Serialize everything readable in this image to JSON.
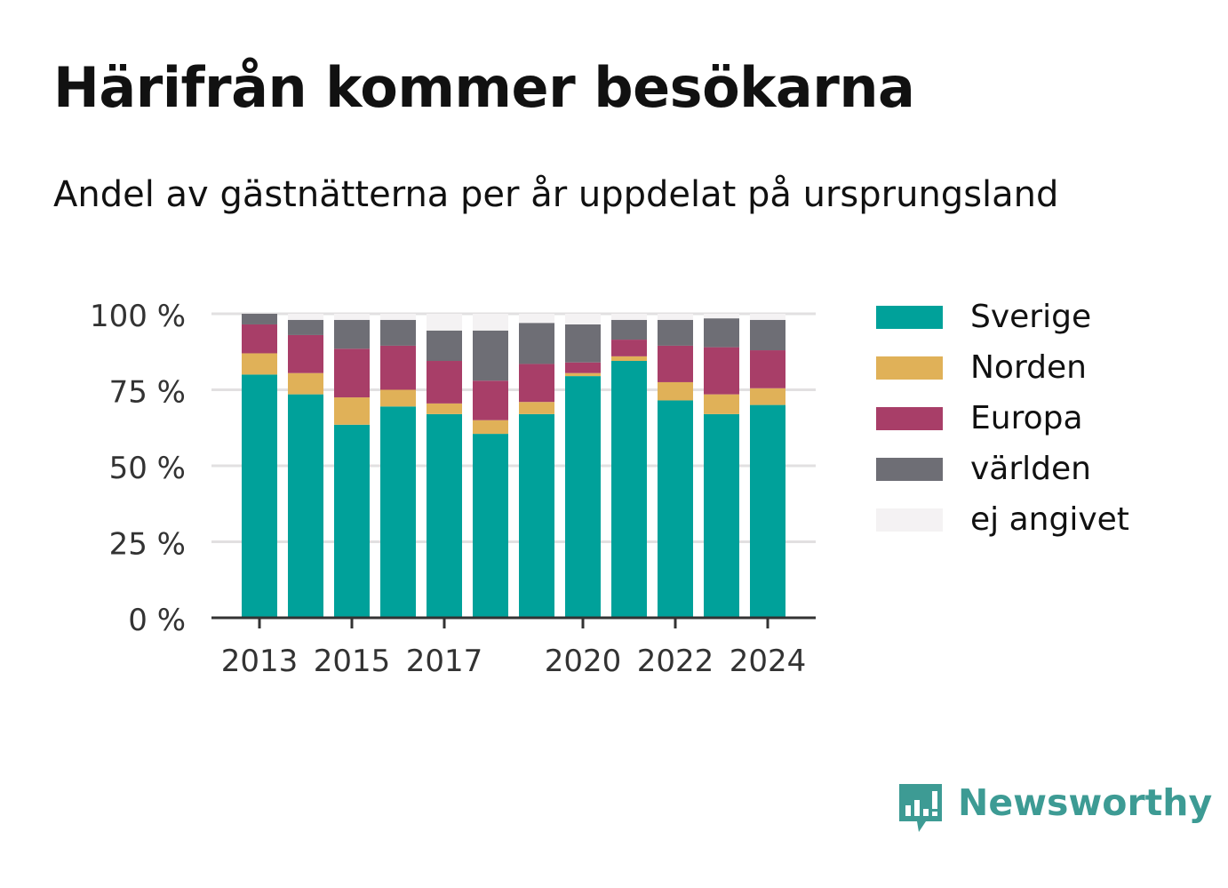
{
  "title": "Härifrån kommer besökarna",
  "subtitle": "Andel av gästnätterna per år uppdelat på ursprungsland",
  "brand": {
    "name": "Newsworthy",
    "icon": "newsworthy-logo-icon",
    "color": "#3d9b94"
  },
  "chart_data": {
    "type": "bar",
    "stacked": true,
    "title": "Härifrån kommer besökarna",
    "subtitle": "Andel av gästnätterna per år uppdelat på ursprungsland",
    "xlabel": "",
    "ylabel": "",
    "categories": [
      "2013",
      "2014",
      "2015",
      "2016",
      "2017",
      "2018",
      "2019",
      "2020",
      "2021",
      "2022",
      "2023",
      "2024"
    ],
    "x_tick_labels": [
      "2013",
      "2015",
      "2017",
      "2020",
      "2022",
      "2024"
    ],
    "y_ticks": [
      0,
      25,
      50,
      75,
      100
    ],
    "y_tick_labels": [
      "0 %",
      "25 %",
      "50 %",
      "75 %",
      "100 %"
    ],
    "ylim": [
      0,
      100
    ],
    "grid": true,
    "legend_position": "right",
    "series": [
      {
        "name": "Sverige",
        "color": "#00a19a",
        "values": [
          80,
          73.5,
          63.5,
          69.5,
          67,
          60.5,
          67,
          79.5,
          84.5,
          71.5,
          67,
          70
        ]
      },
      {
        "name": "Norden",
        "color": "#e0b158",
        "values": [
          7,
          7,
          9,
          5.5,
          3.5,
          4.5,
          4,
          1,
          1.5,
          6,
          6.5,
          5.5
        ]
      },
      {
        "name": "Europa",
        "color": "#a83e68",
        "values": [
          9.5,
          12.5,
          16,
          14.5,
          14,
          13,
          12.5,
          3.5,
          5.5,
          12,
          15.5,
          12.5
        ]
      },
      {
        "name": "världen",
        "color": "#6e6e75",
        "values": [
          3.5,
          5,
          9.5,
          8.5,
          10,
          16.5,
          13.5,
          12.5,
          6.5,
          8.5,
          9.5,
          10
        ]
      },
      {
        "name": "ej angivet",
        "color": "#f4f2f3",
        "values": [
          0,
          2,
          2,
          2,
          5.5,
          5.5,
          3,
          3.5,
          2,
          2,
          1.5,
          2
        ]
      }
    ]
  }
}
